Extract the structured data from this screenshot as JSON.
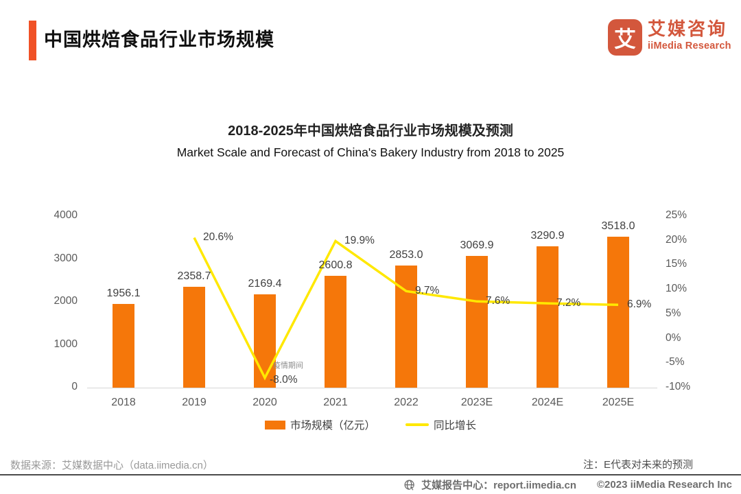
{
  "colors": {
    "accent": "#F05126",
    "logo": "#D3573C",
    "bar": "#F5770A",
    "line": "#FFE800",
    "axis_text": "#595959",
    "divider": "#4a4a4a"
  },
  "header": {
    "title": "中国烘焙食品行业市场规模",
    "logo_mark": "艾",
    "logo_cn": "艾媒咨询",
    "logo_en": "iiMedia Research"
  },
  "chart_data": {
    "type": "combo-bar-line",
    "title": "2018-2025年中国烘焙食品行业市场规模及预测",
    "subtitle": "Market Scale and Forecast of China's Bakery Industry from 2018 to 2025",
    "categories": [
      "2018",
      "2019",
      "2020",
      "2021",
      "2022",
      "2023E",
      "2024E",
      "2025E"
    ],
    "series": [
      {
        "name": "市场规模（亿元）",
        "type": "bar",
        "axis": "left",
        "color": "#F5770A",
        "values": [
          1956.1,
          2358.7,
          2169.4,
          2600.8,
          2853.0,
          3069.9,
          3290.9,
          3518.0
        ],
        "value_labels": [
          "1956.1",
          "2358.7",
          "2169.4",
          "2600.8",
          "2853.0",
          "3069.9",
          "3290.9",
          "3518.0"
        ]
      },
      {
        "name": "同比增长",
        "type": "line",
        "axis": "right",
        "color": "#FFE800",
        "values": [
          null,
          20.6,
          -8.0,
          19.9,
          9.7,
          7.6,
          7.2,
          6.9
        ],
        "value_labels": [
          "",
          "20.6%",
          "-8.0%",
          "19.9%",
          "9.7%",
          "7.6%",
          "7.2%",
          "6.9%"
        ]
      }
    ],
    "left_axis": {
      "ticks": [
        "0",
        "1000",
        "2000",
        "3000",
        "4000"
      ],
      "min": 0,
      "max": 4000
    },
    "right_axis": {
      "ticks": [
        "25%",
        "20%",
        "15%",
        "10%",
        "5%",
        "0%",
        "-5%",
        "-10%"
      ],
      "min": -10,
      "max": 25
    },
    "annotation": {
      "text": "疫情期间",
      "at_category": "2020"
    },
    "grid": false,
    "legend_position": "bottom"
  },
  "footer": {
    "source": "数据来源：艾媒数据中心（data.iimedia.cn）",
    "note": "注：E代表对未来的预测",
    "report_center": "艾媒报告中心：report.iimedia.cn",
    "copyright": "©2023 iiMedia Research Inc"
  }
}
